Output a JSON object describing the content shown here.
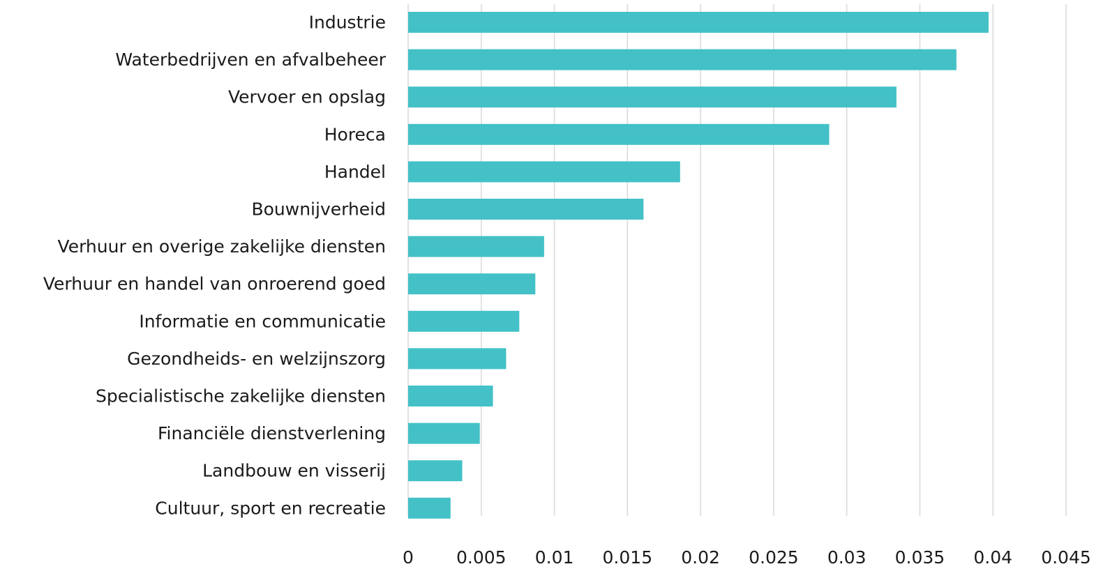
{
  "chart_data": {
    "type": "bar",
    "orientation": "horizontal",
    "title": "",
    "xlabel": "",
    "ylabel": "",
    "categories": [
      "Industrie",
      "Waterbedrijven en afvalbeheer",
      "Vervoer en opslag ",
      "Horeca",
      "Handel",
      "Bouwnijverheid",
      "Verhuur en overige zakelijke diensten",
      "Verhuur en handel van onroerend goed",
      "Informatie en communicatie",
      "Gezondheids- en welzijnszorg ",
      "Specialistische zakelijke diensten",
      "Financiële dienstverlening",
      "Landbouw en visserij",
      "Cultuur, sport en recreatie"
    ],
    "values": [
      0.0397,
      0.0375,
      0.0334,
      0.0288,
      0.0186,
      0.0161,
      0.0093,
      0.0087,
      0.0076,
      0.0067,
      0.0058,
      0.0049,
      0.0037,
      0.0029
    ],
    "xlim": [
      0,
      0.045
    ],
    "xticks": [
      0,
      0.005,
      0.01,
      0.015,
      0.02,
      0.025,
      0.03,
      0.035,
      0.04,
      0.045
    ],
    "xtick_labels": [
      "0",
      "0.005",
      "0.01",
      "0.015",
      "0.02",
      "0.025",
      "0.03",
      "0.035",
      "0.04",
      "0.045"
    ],
    "grid": true,
    "legend": "none",
    "bar_color": "#43c1c6",
    "grid_color": "#d9d9d9",
    "text_color": "#1a1a1a"
  }
}
